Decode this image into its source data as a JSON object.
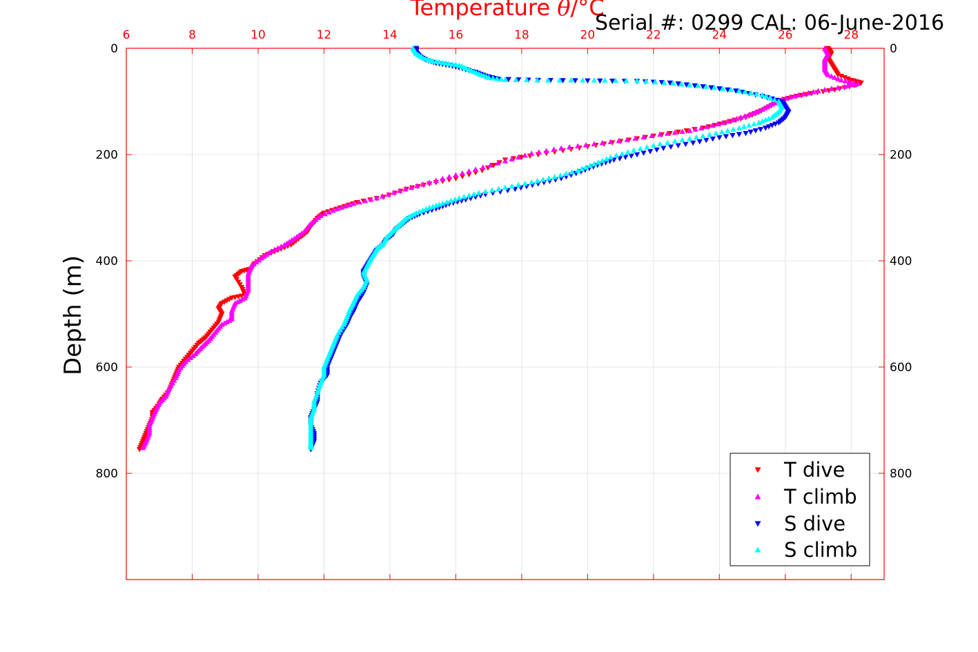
{
  "chart_data": {
    "type": "scatter",
    "title": "Serial #: 0299 CAL: 06-June-2016",
    "xlabel_prefix": "Temperature ",
    "xlabel_symbol": "θ",
    "xlabel_suffix": "/°C",
    "ylabel": "Depth (m)",
    "xlim": [
      6,
      29
    ],
    "ylim": [
      0,
      1000
    ],
    "y_reversed": true,
    "grid": true,
    "legend_position": "bottom-right",
    "x_ticks": [
      6,
      8,
      10,
      12,
      14,
      16,
      18,
      20,
      22,
      24,
      26,
      28
    ],
    "y_ticks": [
      0,
      200,
      400,
      600,
      800
    ],
    "series": [
      {
        "name": "T dive",
        "marker": "triangle-down",
        "color": "#ff0000",
        "points": [
          [
            27.3,
            0
          ],
          [
            27.4,
            10
          ],
          [
            27.3,
            20
          ],
          [
            27.4,
            30
          ],
          [
            27.5,
            40
          ],
          [
            27.6,
            50
          ],
          [
            28.0,
            60
          ],
          [
            28.3,
            65
          ],
          [
            28.1,
            70
          ],
          [
            27.5,
            78
          ],
          [
            26.8,
            85
          ],
          [
            26.2,
            92
          ],
          [
            25.8,
            100
          ],
          [
            25.5,
            110
          ],
          [
            25.2,
            120
          ],
          [
            24.8,
            130
          ],
          [
            24.2,
            140
          ],
          [
            23.5,
            150
          ],
          [
            22.5,
            160
          ],
          [
            21.5,
            170
          ],
          [
            20.5,
            180
          ],
          [
            19.5,
            190
          ],
          [
            18.5,
            200
          ],
          [
            17.5,
            210
          ],
          [
            16.8,
            230
          ],
          [
            16.0,
            245
          ],
          [
            15.2,
            255
          ],
          [
            14.5,
            265
          ],
          [
            13.8,
            280
          ],
          [
            13.0,
            290
          ],
          [
            12.5,
            300
          ],
          [
            12.0,
            310
          ],
          [
            11.8,
            320
          ],
          [
            11.6,
            335
          ],
          [
            11.5,
            345
          ],
          [
            11.3,
            355
          ],
          [
            11.0,
            370
          ],
          [
            10.6,
            380
          ],
          [
            10.2,
            390
          ],
          [
            9.9,
            405
          ],
          [
            9.8,
            415
          ],
          [
            9.5,
            420
          ],
          [
            9.3,
            430
          ],
          [
            9.5,
            450
          ],
          [
            9.6,
            465
          ],
          [
            9.2,
            470
          ],
          [
            8.9,
            480
          ],
          [
            8.8,
            490
          ],
          [
            8.9,
            500
          ],
          [
            8.8,
            515
          ],
          [
            8.6,
            530
          ],
          [
            8.4,
            545
          ],
          [
            8.2,
            555
          ],
          [
            8.0,
            570
          ],
          [
            7.8,
            585
          ],
          [
            7.6,
            600
          ],
          [
            7.5,
            615
          ],
          [
            7.4,
            630
          ],
          [
            7.3,
            645
          ],
          [
            7.1,
            660
          ],
          [
            7.0,
            670
          ],
          [
            6.8,
            685
          ],
          [
            6.8,
            695
          ],
          [
            6.7,
            710
          ],
          [
            6.6,
            725
          ],
          [
            6.5,
            740
          ],
          [
            6.4,
            755
          ]
        ]
      },
      {
        "name": "T climb",
        "marker": "triangle-up",
        "color": "#ff00ff",
        "points": [
          [
            27.2,
            0
          ],
          [
            27.3,
            10
          ],
          [
            27.2,
            20
          ],
          [
            27.2,
            30
          ],
          [
            27.2,
            40
          ],
          [
            27.3,
            50
          ],
          [
            27.7,
            60
          ],
          [
            28.2,
            66
          ],
          [
            27.8,
            72
          ],
          [
            27.0,
            80
          ],
          [
            26.4,
            88
          ],
          [
            25.9,
            96
          ],
          [
            25.6,
            105
          ],
          [
            25.3,
            115
          ],
          [
            24.9,
            125
          ],
          [
            24.4,
            135
          ],
          [
            23.8,
            145
          ],
          [
            23.1,
            155
          ],
          [
            22.2,
            162
          ],
          [
            21.2,
            172
          ],
          [
            20.2,
            180
          ],
          [
            19.2,
            188
          ],
          [
            18.3,
            198
          ],
          [
            17.5,
            212
          ],
          [
            16.6,
            228
          ],
          [
            15.8,
            242
          ],
          [
            15.0,
            256
          ],
          [
            14.3,
            268
          ],
          [
            13.6,
            282
          ],
          [
            12.9,
            292
          ],
          [
            12.4,
            302
          ],
          [
            11.9,
            315
          ],
          [
            11.6,
            330
          ],
          [
            11.4,
            345
          ],
          [
            11.1,
            358
          ],
          [
            10.8,
            370
          ],
          [
            10.4,
            382
          ],
          [
            10.1,
            395
          ],
          [
            9.8,
            410
          ],
          [
            9.7,
            425
          ],
          [
            9.7,
            440
          ],
          [
            9.7,
            455
          ],
          [
            9.6,
            470
          ],
          [
            9.3,
            480
          ],
          [
            9.2,
            495
          ],
          [
            9.2,
            510
          ],
          [
            8.9,
            520
          ],
          [
            8.7,
            535
          ],
          [
            8.5,
            550
          ],
          [
            8.3,
            562
          ],
          [
            8.1,
            575
          ],
          [
            7.8,
            590
          ],
          [
            7.6,
            605
          ],
          [
            7.5,
            620
          ],
          [
            7.3,
            640
          ],
          [
            7.2,
            655
          ],
          [
            7.0,
            668
          ],
          [
            6.9,
            680
          ],
          [
            6.8,
            695
          ],
          [
            6.7,
            710
          ],
          [
            6.7,
            725
          ],
          [
            6.6,
            740
          ],
          [
            6.5,
            752
          ]
        ]
      },
      {
        "name": "S dive",
        "marker": "triangle-down",
        "color": "#0000ff",
        "points": [
          [
            14.8,
            0
          ],
          [
            14.8,
            8
          ],
          [
            14.9,
            15
          ],
          [
            15.1,
            22
          ],
          [
            15.4,
            28
          ],
          [
            15.8,
            32
          ],
          [
            16.2,
            38
          ],
          [
            16.6,
            45
          ],
          [
            16.9,
            52
          ],
          [
            17.3,
            58
          ],
          [
            18.5,
            60
          ],
          [
            20.0,
            61
          ],
          [
            21.5,
            62
          ],
          [
            22.5,
            65
          ],
          [
            23.5,
            72
          ],
          [
            24.5,
            80
          ],
          [
            25.3,
            90
          ],
          [
            25.9,
            100
          ],
          [
            26.0,
            110
          ],
          [
            26.1,
            120
          ],
          [
            26.0,
            130
          ],
          [
            25.8,
            140
          ],
          [
            25.4,
            150
          ],
          [
            24.8,
            160
          ],
          [
            24.0,
            168
          ],
          [
            23.2,
            178
          ],
          [
            22.3,
            188
          ],
          [
            21.5,
            200
          ],
          [
            20.8,
            210
          ],
          [
            20.3,
            220
          ],
          [
            19.8,
            232
          ],
          [
            19.2,
            245
          ],
          [
            18.5,
            255
          ],
          [
            17.8,
            265
          ],
          [
            16.9,
            275
          ],
          [
            16.3,
            285
          ],
          [
            15.8,
            293
          ],
          [
            15.4,
            302
          ],
          [
            14.9,
            312
          ],
          [
            14.6,
            320
          ],
          [
            14.4,
            330
          ],
          [
            14.2,
            340
          ],
          [
            14.1,
            350
          ],
          [
            13.9,
            360
          ],
          [
            13.8,
            370
          ],
          [
            13.6,
            380
          ],
          [
            13.5,
            390
          ],
          [
            13.4,
            400
          ],
          [
            13.3,
            410
          ],
          [
            13.2,
            420
          ],
          [
            13.2,
            430
          ],
          [
            13.3,
            445
          ],
          [
            13.2,
            460
          ],
          [
            13.1,
            470
          ],
          [
            13.0,
            480
          ],
          [
            12.9,
            495
          ],
          [
            12.8,
            505
          ],
          [
            12.7,
            520
          ],
          [
            12.5,
            540
          ],
          [
            12.4,
            555
          ],
          [
            12.3,
            570
          ],
          [
            12.2,
            585
          ],
          [
            12.1,
            600
          ],
          [
            12.1,
            615
          ],
          [
            11.9,
            630
          ],
          [
            11.8,
            650
          ],
          [
            11.8,
            665
          ],
          [
            11.7,
            680
          ],
          [
            11.6,
            695
          ],
          [
            11.6,
            710
          ],
          [
            11.7,
            725
          ],
          [
            11.7,
            740
          ],
          [
            11.6,
            755
          ]
        ]
      },
      {
        "name": "S climb",
        "marker": "triangle-up",
        "color": "#00ffff",
        "points": [
          [
            14.7,
            0
          ],
          [
            14.8,
            10
          ],
          [
            15.0,
            18
          ],
          [
            15.3,
            24
          ],
          [
            15.7,
            28
          ],
          [
            16.1,
            32
          ],
          [
            16.4,
            40
          ],
          [
            16.7,
            48
          ],
          [
            17.0,
            55
          ],
          [
            17.5,
            59
          ],
          [
            18.8,
            60
          ],
          [
            20.2,
            60
          ],
          [
            21.5,
            61
          ],
          [
            22.6,
            66
          ],
          [
            23.6,
            72
          ],
          [
            24.6,
            80
          ],
          [
            25.3,
            88
          ],
          [
            25.8,
            100
          ],
          [
            25.9,
            110
          ],
          [
            25.8,
            120
          ],
          [
            25.6,
            130
          ],
          [
            25.2,
            140
          ],
          [
            24.6,
            150
          ],
          [
            23.9,
            160
          ],
          [
            23.1,
            170
          ],
          [
            22.2,
            180
          ],
          [
            21.4,
            192
          ],
          [
            20.7,
            205
          ],
          [
            20.2,
            218
          ],
          [
            19.7,
            230
          ],
          [
            19.0,
            242
          ],
          [
            18.3,
            252
          ],
          [
            17.5,
            262
          ],
          [
            16.7,
            272
          ],
          [
            16.1,
            282
          ],
          [
            15.6,
            292
          ],
          [
            15.2,
            300
          ],
          [
            14.8,
            310
          ],
          [
            14.5,
            320
          ],
          [
            14.3,
            332
          ],
          [
            14.1,
            344
          ],
          [
            13.9,
            356
          ],
          [
            13.8,
            368
          ],
          [
            13.6,
            378
          ],
          [
            13.5,
            388
          ],
          [
            13.4,
            398
          ],
          [
            13.3,
            410
          ],
          [
            13.2,
            422
          ],
          [
            13.3,
            435
          ],
          [
            13.2,
            450
          ],
          [
            13.0,
            465
          ],
          [
            12.9,
            478
          ],
          [
            12.8,
            490
          ],
          [
            12.7,
            505
          ],
          [
            12.6,
            520
          ],
          [
            12.4,
            540
          ],
          [
            12.3,
            555
          ],
          [
            12.2,
            570
          ],
          [
            12.1,
            585
          ],
          [
            12.0,
            600
          ],
          [
            12.0,
            615
          ],
          [
            11.9,
            630
          ],
          [
            11.8,
            648
          ],
          [
            11.7,
            665
          ],
          [
            11.7,
            680
          ],
          [
            11.6,
            695
          ],
          [
            11.6,
            712
          ],
          [
            11.6,
            728
          ],
          [
            11.6,
            742
          ],
          [
            11.6,
            752
          ]
        ]
      }
    ]
  }
}
